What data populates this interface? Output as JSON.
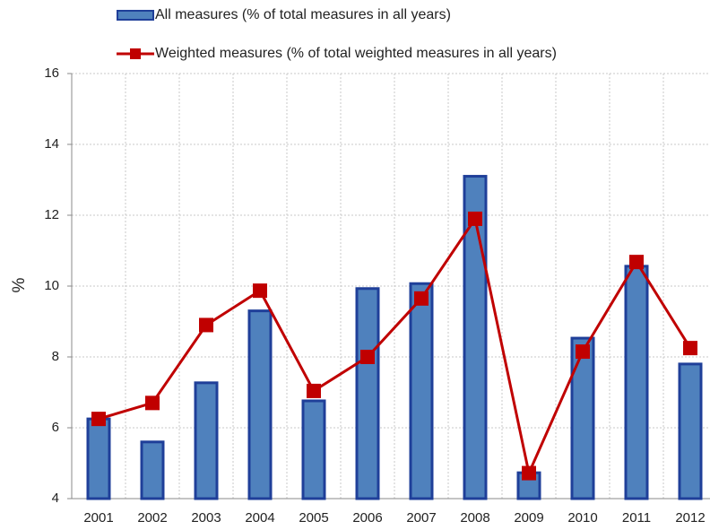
{
  "chart_data": {
    "type": "bar_line",
    "categories": [
      "2001",
      "2002",
      "2003",
      "2004",
      "2005",
      "2006",
      "2007",
      "2008",
      "2009",
      "2010",
      "2011",
      "2012"
    ],
    "series": [
      {
        "name": "All measures (% of total measures in all years)",
        "type": "bar",
        "color": "#4f81bd",
        "edge": "#1f3f99",
        "values": [
          6.25,
          5.6,
          7.27,
          9.3,
          6.76,
          9.93,
          10.07,
          13.1,
          4.73,
          8.53,
          10.56,
          7.8
        ]
      },
      {
        "name": "Weighted measures (% of total weighted measures in all years)",
        "type": "line",
        "color": "#c00000",
        "values": [
          6.25,
          6.7,
          8.9,
          9.87,
          7.04,
          8.0,
          9.65,
          11.9,
          4.72,
          8.15,
          10.68,
          8.25
        ]
      }
    ],
    "ylabel": "%",
    "ylim": [
      4,
      16
    ],
    "yticks": [
      4,
      6,
      8,
      10,
      12,
      14,
      16
    ],
    "grid": true
  }
}
